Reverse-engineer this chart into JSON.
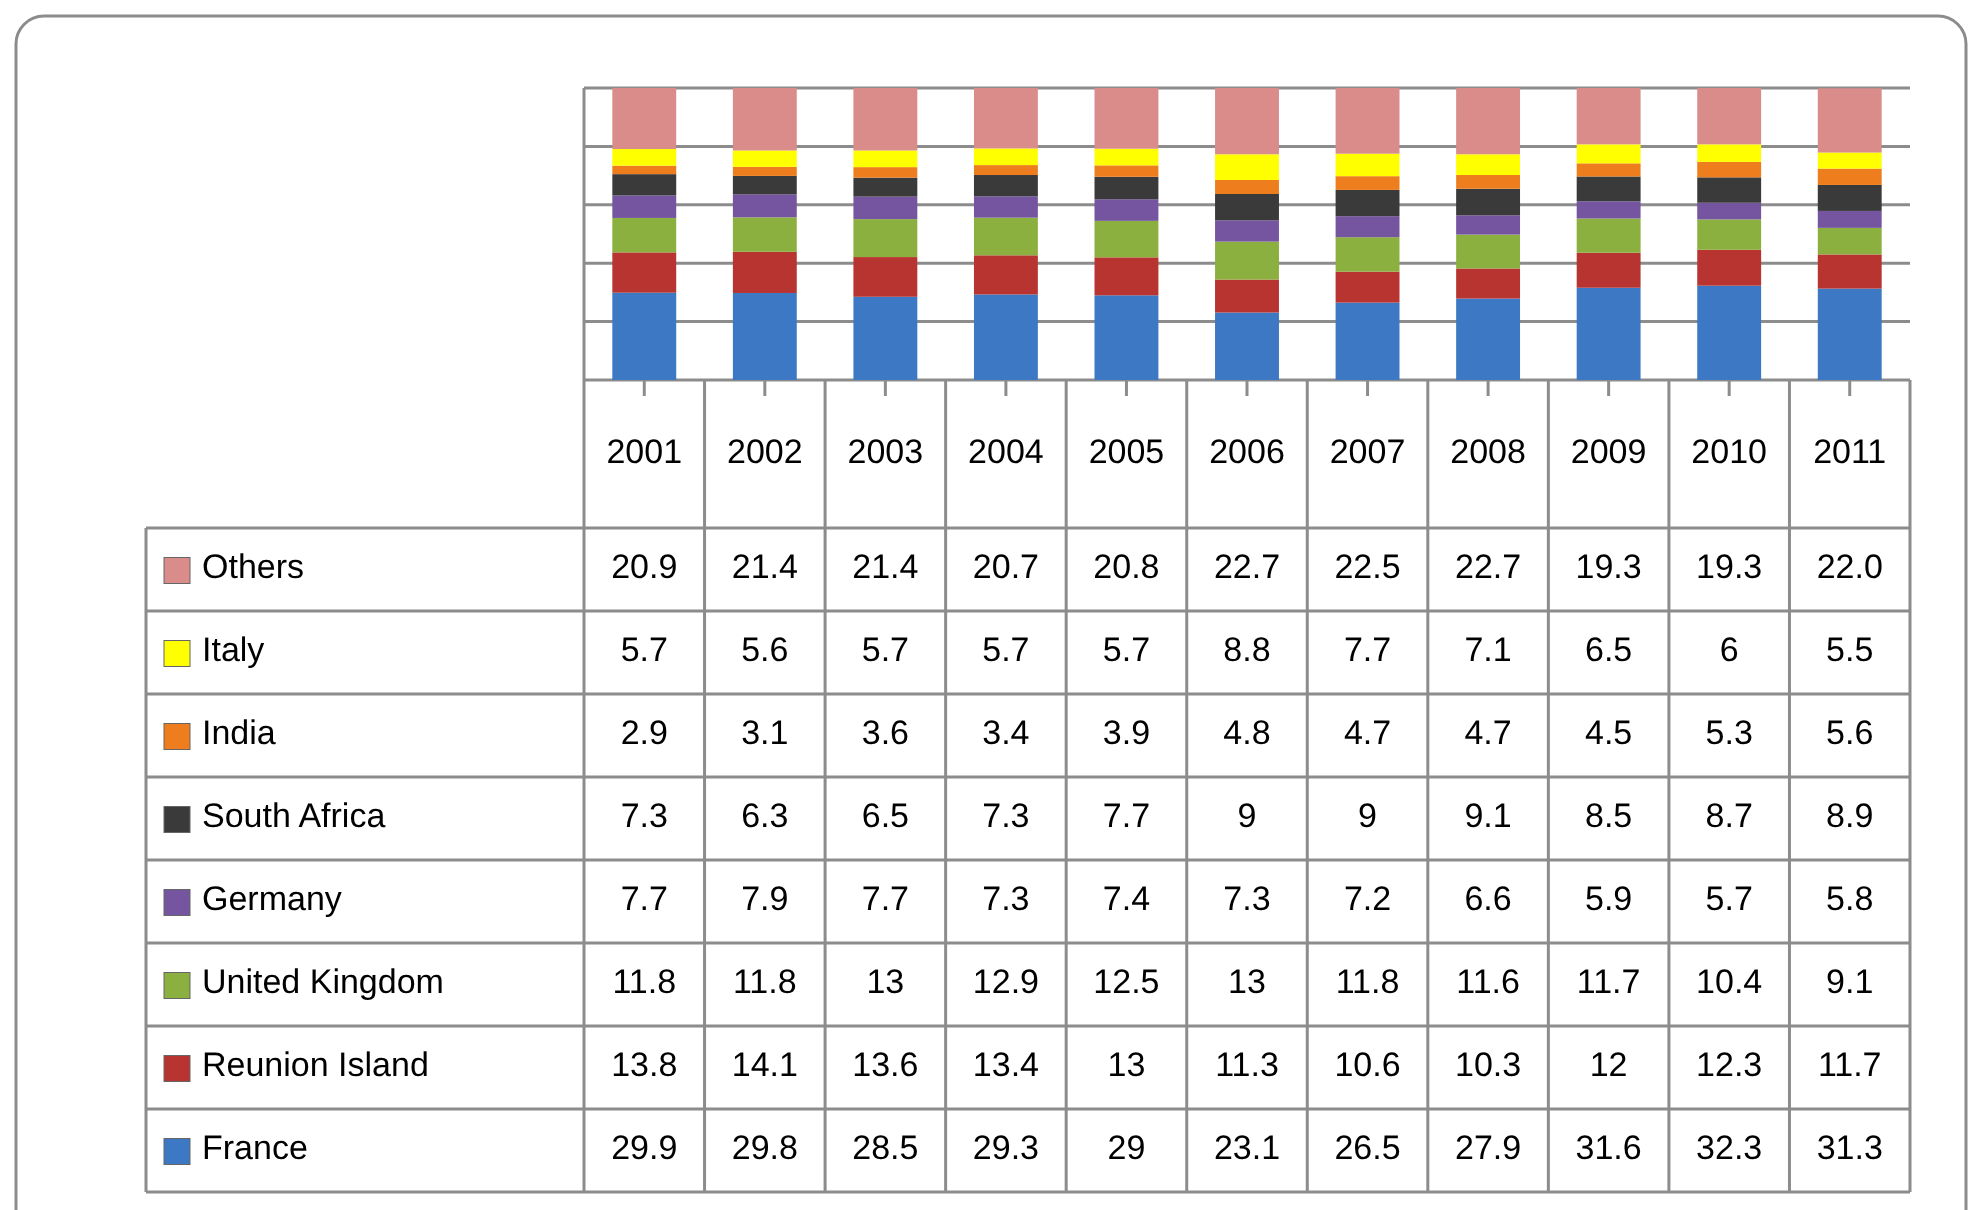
{
  "chart_data": {
    "type": "bar",
    "stacked": true,
    "categories": [
      "2001",
      "2002",
      "2003",
      "2004",
      "2005",
      "2006",
      "2007",
      "2008",
      "2009",
      "2010",
      "2011"
    ],
    "ylim": [
      0,
      100
    ],
    "yticks": [
      {
        "value": 0,
        "label": null
      },
      {
        "value": 20,
        "label": null
      },
      {
        "value": 40,
        "label": null
      },
      {
        "value": 60,
        "label": null
      },
      {
        "value": 80,
        "label": null
      },
      {
        "value": 100,
        "label": null
      }
    ],
    "tick_labels": "x",
    "grid": "y",
    "legend": "left",
    "series": [
      {
        "name": "France",
        "color": "#3c78c3",
        "values": [
          29.9,
          29.8,
          28.5,
          29.3,
          29,
          23.1,
          26.5,
          27.9,
          31.6,
          32.3,
          31.3
        ],
        "value_labels": [
          "29.9",
          "29.8",
          "28.5",
          "29.3",
          "29",
          "23.1",
          "26.5",
          "27.9",
          "31.6",
          "32.3",
          "31.3"
        ]
      },
      {
        "name": "Reunion Island",
        "color": "#b83431",
        "values": [
          13.8,
          14.1,
          13.6,
          13.4,
          13,
          11.3,
          10.6,
          10.3,
          12,
          12.3,
          11.7
        ],
        "value_labels": [
          "13.8",
          "14.1",
          "13.6",
          "13.4",
          "13",
          "11.3",
          "10.6",
          "10.3",
          "12",
          "12.3",
          "11.7"
        ]
      },
      {
        "name": "United Kingdom",
        "color": "#8cb03f",
        "values": [
          11.8,
          11.8,
          13,
          12.9,
          12.5,
          13,
          11.8,
          11.6,
          11.7,
          10.4,
          9.1
        ],
        "value_labels": [
          "11.8",
          "11.8",
          "13",
          "12.9",
          "12.5",
          "13",
          "11.8",
          "11.6",
          "11.7",
          "10.4",
          "9.1"
        ]
      },
      {
        "name": "Germany",
        "color": "#7554a0",
        "values": [
          7.7,
          7.9,
          7.7,
          7.3,
          7.4,
          7.3,
          7.2,
          6.6,
          5.9,
          5.7,
          5.8
        ],
        "value_labels": [
          "7.7",
          "7.9",
          "7.7",
          "7.3",
          "7.4",
          "7.3",
          "7.2",
          "6.6",
          "5.9",
          "5.7",
          "5.8"
        ]
      },
      {
        "name": "South Africa",
        "color": "#3a3a3a",
        "values": [
          7.3,
          6.3,
          6.5,
          7.3,
          7.7,
          9,
          9,
          9.1,
          8.5,
          8.7,
          8.9
        ],
        "value_labels": [
          "7.3",
          "6.3",
          "6.5",
          "7.3",
          "7.7",
          "9",
          "9",
          "9.1",
          "8.5",
          "8.7",
          "8.9"
        ]
      },
      {
        "name": "India",
        "color": "#ee7d1d",
        "values": [
          2.9,
          3.1,
          3.6,
          3.4,
          3.9,
          4.8,
          4.7,
          4.7,
          4.5,
          5.3,
          5.6
        ],
        "value_labels": [
          "2.9",
          "3.1",
          "3.6",
          "3.4",
          "3.9",
          "4.8",
          "4.7",
          "4.7",
          "4.5",
          "5.3",
          "5.6"
        ]
      },
      {
        "name": "Italy",
        "color": "#ffff00",
        "values": [
          5.7,
          5.6,
          5.7,
          5.7,
          5.7,
          8.8,
          7.7,
          7.1,
          6.5,
          6,
          5.5
        ],
        "value_labels": [
          "5.7",
          "5.6",
          "5.7",
          "5.7",
          "5.7",
          "8.8",
          "7.7",
          "7.1",
          "6.5",
          "6",
          "5.5"
        ]
      },
      {
        "name": "Others",
        "color": "#d98c8a",
        "values": [
          20.9,
          21.4,
          21.4,
          20.7,
          20.8,
          22.7,
          22.5,
          22.7,
          19.3,
          19.3,
          22.0
        ],
        "value_labels": [
          "20.9",
          "21.4",
          "21.4",
          "20.7",
          "20.8",
          "22.7",
          "22.5",
          "22.7",
          "19.3",
          "19.3",
          "22.0"
        ]
      }
    ]
  }
}
